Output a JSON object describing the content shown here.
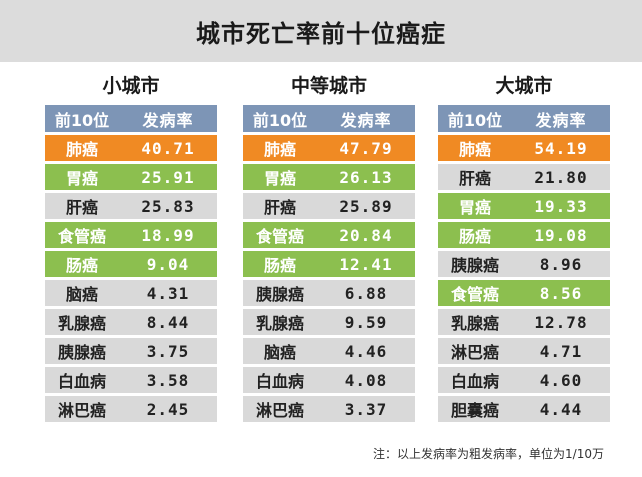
{
  "title": "城市死亡率前十位癌症",
  "header": {
    "rank": "前10位",
    "rate": "发病率"
  },
  "panels": [
    {
      "name": "小城市",
      "rows": [
        {
          "cancer": "肺癌",
          "rate": "40.71",
          "color": "orange"
        },
        {
          "cancer": "胃癌",
          "rate": "25.91",
          "color": "green"
        },
        {
          "cancer": "肝癌",
          "rate": "25.83",
          "color": "grey"
        },
        {
          "cancer": "食管癌",
          "rate": "18.99",
          "color": "green"
        },
        {
          "cancer": "肠癌",
          "rate": "9.04",
          "color": "green"
        },
        {
          "cancer": "脑癌",
          "rate": "4.31",
          "color": "grey"
        },
        {
          "cancer": "乳腺癌",
          "rate": "8.44",
          "color": "grey"
        },
        {
          "cancer": "胰腺癌",
          "rate": "3.75",
          "color": "grey"
        },
        {
          "cancer": "白血病",
          "rate": "3.58",
          "color": "grey"
        },
        {
          "cancer": "淋巴癌",
          "rate": "2.45",
          "color": "grey"
        }
      ]
    },
    {
      "name": "中等城市",
      "rows": [
        {
          "cancer": "肺癌",
          "rate": "47.79",
          "color": "orange"
        },
        {
          "cancer": "胃癌",
          "rate": "26.13",
          "color": "green"
        },
        {
          "cancer": "肝癌",
          "rate": "25.89",
          "color": "grey"
        },
        {
          "cancer": "食管癌",
          "rate": "20.84",
          "color": "green"
        },
        {
          "cancer": "肠癌",
          "rate": "12.41",
          "color": "green"
        },
        {
          "cancer": "胰腺癌",
          "rate": "6.88",
          "color": "grey"
        },
        {
          "cancer": "乳腺癌",
          "rate": "9.59",
          "color": "grey"
        },
        {
          "cancer": "脑癌",
          "rate": "4.46",
          "color": "grey"
        },
        {
          "cancer": "白血病",
          "rate": "4.08",
          "color": "grey"
        },
        {
          "cancer": "淋巴癌",
          "rate": "3.37",
          "color": "grey"
        }
      ]
    },
    {
      "name": "大城市",
      "rows": [
        {
          "cancer": "肺癌",
          "rate": "54.19",
          "color": "orange"
        },
        {
          "cancer": "肝癌",
          "rate": "21.80",
          "color": "grey"
        },
        {
          "cancer": "胃癌",
          "rate": "19.33",
          "color": "green"
        },
        {
          "cancer": "肠癌",
          "rate": "19.08",
          "color": "green"
        },
        {
          "cancer": "胰腺癌",
          "rate": "8.96",
          "color": "grey"
        },
        {
          "cancer": "食管癌",
          "rate": "8.56",
          "color": "green"
        },
        {
          "cancer": "乳腺癌",
          "rate": "12.78",
          "color": "grey"
        },
        {
          "cancer": "淋巴癌",
          "rate": "4.71",
          "color": "grey"
        },
        {
          "cancer": "白血病",
          "rate": "4.60",
          "color": "grey"
        },
        {
          "cancer": "胆囊癌",
          "rate": "4.44",
          "color": "grey"
        }
      ]
    }
  ],
  "note": "注：以上发病率为粗发病率，单位为1/10万",
  "colors": {
    "header": "#7d95b6",
    "orange": "#f08a23",
    "green": "#8cbf4f",
    "grey": "#d9d9d9"
  }
}
